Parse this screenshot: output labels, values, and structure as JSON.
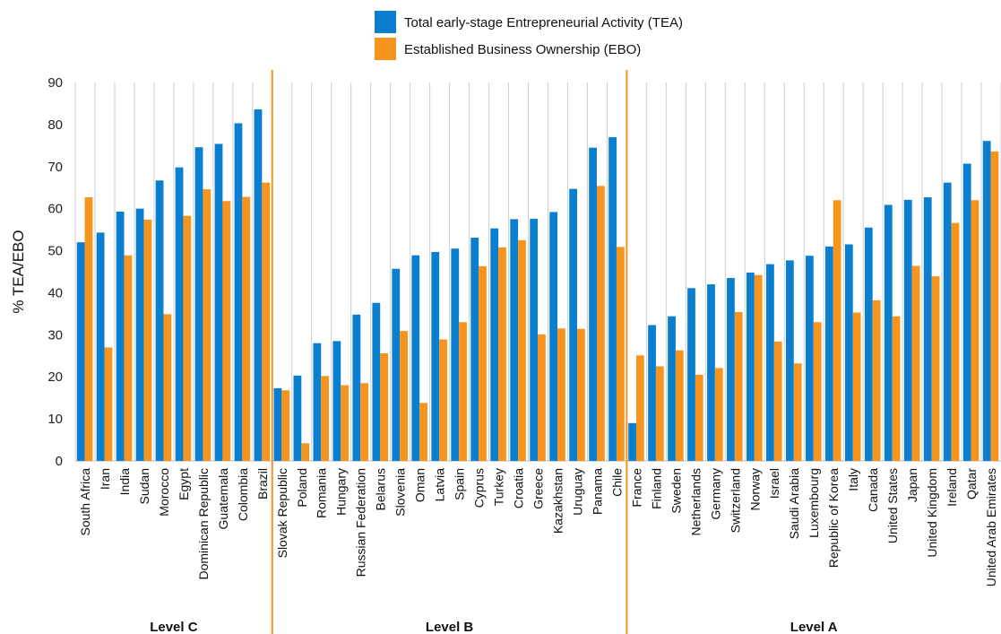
{
  "chart_data": {
    "type": "bar",
    "ylabel": "% TEA/EBO",
    "ylim": [
      0,
      90
    ],
    "yticks": [
      0,
      10,
      20,
      30,
      40,
      50,
      60,
      70,
      80,
      90
    ],
    "grid": "vertical lines between categories",
    "legend_position": "top-center",
    "categories": [
      "South Africa",
      "Iran",
      "India",
      "Sudan",
      "Morocco",
      "Egypt",
      "Dominican Republic",
      "Guatemala",
      "Colombia",
      "Brazil",
      "Slovak Republic",
      "Poland",
      "Romania",
      "Hungary",
      "Russian Federation",
      "Belarus",
      "Slovenia",
      "Oman",
      "Latvia",
      "Spain",
      "Cyprus",
      "Turkey",
      "Croatia",
      "Greece",
      "Kazakhstan",
      "Uruguay",
      "Panama",
      "Chile",
      "France",
      "Finland",
      "Sweden",
      "Netherlands",
      "Germany",
      "Switzerland",
      "Norway",
      "Israel",
      "Saudi Arabia",
      "Luxembourg",
      "Republic of Korea",
      "Italy",
      "Canada",
      "United States",
      "Japan",
      "United Kingdom",
      "Ireland",
      "Qatar",
      "United Arab Emirates"
    ],
    "series": [
      {
        "name": "Total early-stage Entrepreneurial Activity (TEA)",
        "color": "#0a7fcf",
        "values": [
          52,
          54.3,
          59.3,
          60,
          66.7,
          69.8,
          74.6,
          75.4,
          80.3,
          83.6,
          17.3,
          20.3,
          28,
          28.5,
          34.8,
          37.6,
          45.7,
          48.9,
          49.7,
          50.5,
          53.1,
          55.3,
          57.5,
          57.6,
          59.2,
          64.7,
          74.5,
          77,
          9,
          32.3,
          34.4,
          41.1,
          42,
          43.5,
          44.8,
          46.8,
          47.7,
          48.8,
          51,
          51.5,
          55.5,
          60.9,
          62.1,
          62.7,
          66.2,
          70.7,
          76.1
        ]
      },
      {
        "name": "Established Business Ownership (EBO)",
        "color": "#f7941d",
        "values": [
          62.7,
          27,
          48.9,
          57.4,
          34.9,
          58.3,
          64.6,
          61.8,
          62.8,
          66.2,
          16.8,
          4.2,
          20.2,
          18,
          18.5,
          25.6,
          30.9,
          13.8,
          28.9,
          33,
          46.3,
          50.8,
          52.5,
          30.1,
          31.5,
          31.4,
          65.4,
          50.9,
          25.1,
          22.5,
          26.3,
          20.5,
          22.1,
          35.4,
          44.2,
          28.4,
          23.2,
          33,
          62,
          35.3,
          38.2,
          34.4,
          46.4,
          43.9,
          56.6,
          62,
          73.6
        ]
      }
    ],
    "groups": [
      {
        "label": "Level C",
        "start": 0,
        "end": 9
      },
      {
        "label": "Level B",
        "start": 10,
        "end": 27
      },
      {
        "label": "Level A",
        "start": 28,
        "end": 46
      }
    ],
    "separator_color": "#f7941d"
  }
}
